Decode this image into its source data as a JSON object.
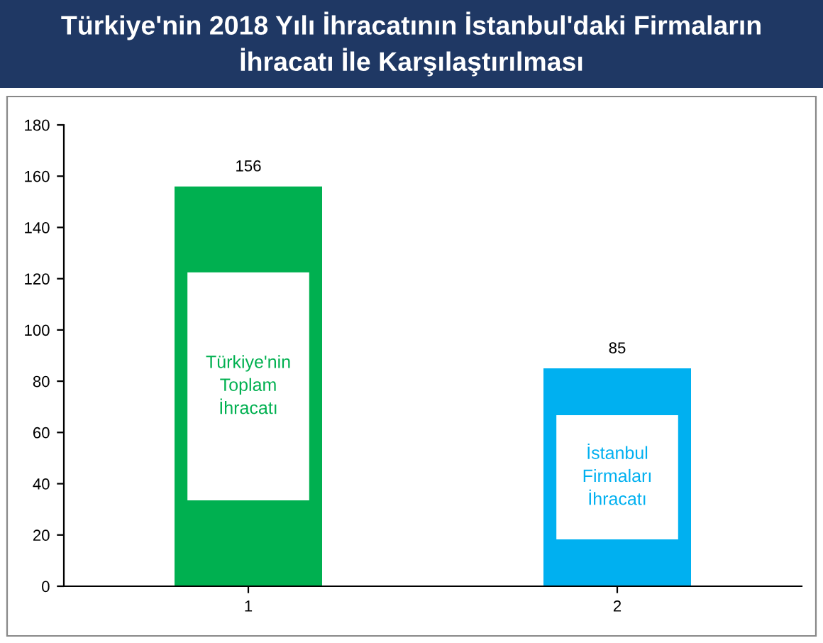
{
  "chart_data": {
    "type": "bar",
    "title": "Türkiye'nin 2018 Yılı İhracatının İstanbul'daki Firmaların\nİhracatı İle Karşılaştırılması",
    "categories": [
      "1",
      "2"
    ],
    "values": [
      156,
      85
    ],
    "colors": [
      "#00b050",
      "#00b0f0"
    ],
    "ylim": [
      0,
      180
    ],
    "yticks": [
      0,
      20,
      40,
      60,
      80,
      100,
      120,
      140,
      160,
      180
    ],
    "data_labels": true,
    "grid": false,
    "legend": false,
    "annotations": [
      "Türkiye'nin\nToplam\nİhracatı",
      "İstanbul\nFirmaları\nİhracatı"
    ]
  }
}
